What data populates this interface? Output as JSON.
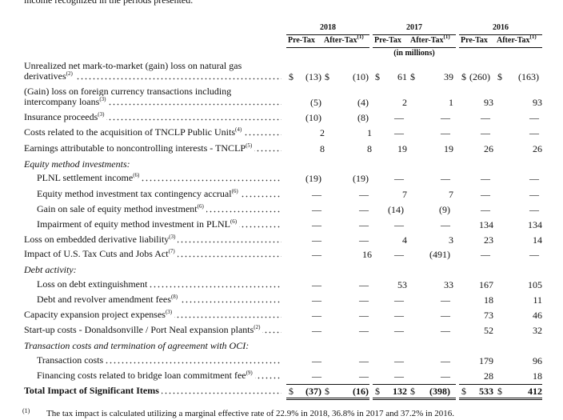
{
  "intro": "income recognized in the periods presented.",
  "currency_symbol": "$",
  "header": {
    "years": [
      "2018",
      "2017",
      "2016"
    ],
    "pre_tax": "Pre-Tax",
    "after_tax": "After-Tax",
    "after_tax_note": "(1)",
    "units": "(in millions)"
  },
  "table": {
    "rows": [
      {
        "label": "Unrealized net mark-to-market (gain) loss on natural gas derivatives",
        "note": "(2)",
        "dollar": true,
        "values": [
          "(13)",
          "(10)",
          "61",
          "39",
          "(260)",
          "(163)"
        ]
      },
      {
        "label": "(Gain) loss on foreign currency transactions including intercompany loans",
        "note": "(3)",
        "values": [
          "(5)",
          "(4)",
          "2",
          "1",
          "93",
          "93"
        ]
      },
      {
        "label": "Insurance proceeds",
        "note": "(3)",
        "values": [
          "(10)",
          "(8)",
          "—",
          "—",
          "—",
          "—"
        ]
      },
      {
        "label": "Costs related to the acquisition of TNCLP Public Units",
        "note": "(4)",
        "values": [
          "2",
          "1",
          "—",
          "—",
          "—",
          "—"
        ]
      },
      {
        "label": "Earnings attributable to noncontrolling interests - TNCLP",
        "note": "(5)",
        "values": [
          "8",
          "8",
          "19",
          "19",
          "26",
          "26"
        ]
      },
      {
        "section": "Equity method investments:"
      },
      {
        "label": "PLNL settlement income",
        "note": "(6)",
        "indent": true,
        "values": [
          "(19)",
          "(19)",
          "—",
          "—",
          "—",
          "—"
        ]
      },
      {
        "label": "Equity method investment tax contingency accrual",
        "note": "(6)",
        "indent": true,
        "values": [
          "—",
          "—",
          "7",
          "7",
          "—",
          "—"
        ]
      },
      {
        "label": "Gain on sale of equity method investment",
        "note": "(6)",
        "indent": true,
        "values": [
          "—",
          "—",
          "(14)",
          "(9)",
          "—",
          "—"
        ]
      },
      {
        "label": "Impairment of equity method investment in PLNL",
        "note": "(6)",
        "indent": true,
        "values": [
          "—",
          "—",
          "—",
          "—",
          "134",
          "134"
        ]
      },
      {
        "label": "Loss on embedded derivative liability",
        "note": "(3)",
        "values": [
          "—",
          "—",
          "4",
          "3",
          "23",
          "14"
        ]
      },
      {
        "label": "Impact of U.S. Tax Cuts and Jobs Act",
        "note": "(7)",
        "values": [
          "—",
          "16",
          "—",
          "(491)",
          "—",
          "—"
        ]
      },
      {
        "section": "Debt activity:"
      },
      {
        "label": "Loss on debt extinguishment",
        "indent": true,
        "values": [
          "—",
          "—",
          "53",
          "33",
          "167",
          "105"
        ]
      },
      {
        "label": "Debt and revolver amendment fees",
        "note": "(8)",
        "indent": true,
        "values": [
          "—",
          "—",
          "—",
          "—",
          "18",
          "11"
        ]
      },
      {
        "label": "Capacity expansion project expenses",
        "note": "(3)",
        "values": [
          "—",
          "—",
          "—",
          "—",
          "73",
          "46"
        ]
      },
      {
        "label": "Start-up costs - Donaldsonville / Port Neal expansion plants",
        "note": "(2)",
        "values": [
          "—",
          "—",
          "—",
          "—",
          "52",
          "32"
        ]
      },
      {
        "section": "Transaction costs and termination of agreement with OCI:"
      },
      {
        "label": "Transaction costs",
        "indent": true,
        "values": [
          "—",
          "—",
          "—",
          "—",
          "179",
          "96"
        ]
      },
      {
        "label": "Financing costs related to bridge loan commitment fee",
        "note": "(9)",
        "indent": true,
        "values": [
          "—",
          "—",
          "—",
          "—",
          "28",
          "18"
        ]
      },
      {
        "label": "Total Impact of Significant Items",
        "total": true,
        "dollar": true,
        "values": [
          "(37)",
          "(16)",
          "132",
          "(398)",
          "533",
          "412"
        ]
      }
    ]
  },
  "footnote": {
    "marker": "(1)",
    "text": "The tax impact is calculated utilizing a marginal effective rate of 22.9% in 2018, 36.8% in 2017 and 37.2% in 2016."
  }
}
